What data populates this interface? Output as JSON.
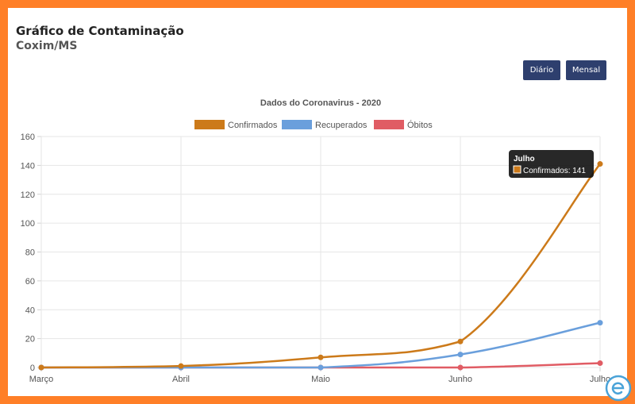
{
  "header": {
    "title": "Gráfico de Contaminação",
    "subtitle": "Coxim/MS"
  },
  "buttons": {
    "daily_label": "Diário",
    "monthly_label": "Mensal"
  },
  "colors": {
    "page_border": "#ff7f27",
    "button_bg": "#2e3f6e",
    "confirmados": "#cc7a1a",
    "recuperados": "#6a9fdc",
    "obitos": "#e05c64"
  },
  "chart_data": {
    "type": "line",
    "title": "Dados do Coronavirus - 2020",
    "categories": [
      "Março",
      "Abril",
      "Maio",
      "Junho",
      "Julho"
    ],
    "ylim": [
      0,
      160
    ],
    "yticks": [
      "0",
      "20",
      "40",
      "60",
      "80",
      "100",
      "120",
      "140",
      "160"
    ],
    "grid": true,
    "legend_position": "top",
    "series": [
      {
        "name": "Confirmados",
        "values": [
          0,
          1,
          7,
          18,
          141
        ]
      },
      {
        "name": "Recuperados",
        "values": [
          0,
          0,
          0,
          9,
          31
        ]
      },
      {
        "name": "Óbitos",
        "values": [
          0,
          0,
          0,
          0,
          3
        ]
      }
    ],
    "tooltip": {
      "title": "Julho",
      "text": "Confirmados: 141"
    }
  },
  "logo_icon": "e-logo-icon"
}
